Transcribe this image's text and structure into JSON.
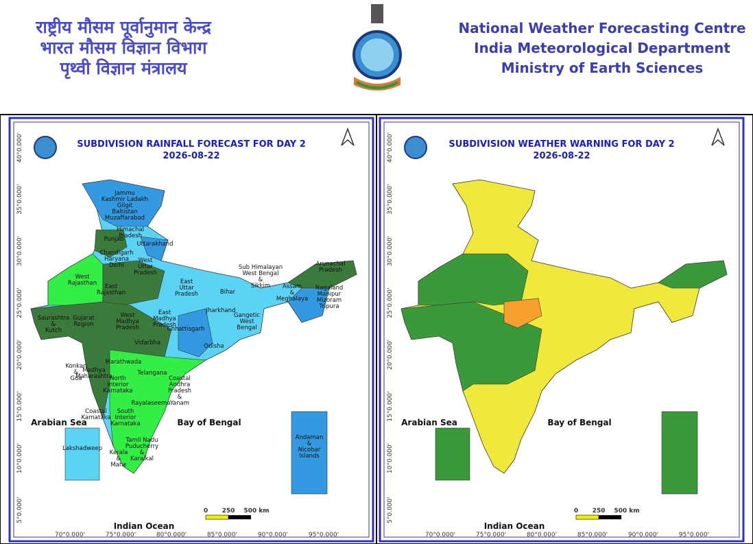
{
  "header": {
    "hindi": [
      "राष्ट्रीय मौसम पूर्वानुमान केन्द्र",
      "भारत मौसम विज्ञान विभाग",
      "पृथ्वी विज्ञान मंत्रालय"
    ],
    "english": [
      "National Weather Forecasting Centre",
      "India Meteorological Department",
      "Ministry of Earth Sciences"
    ]
  },
  "panels": [
    {
      "title": "SUBDIVISION RAINFALL FORECAST FOR DAY 2",
      "date": "2026-08-22",
      "latitude_labels": [
        "40°0.000'",
        "35°0.000'",
        "30°0.000'",
        "25°0.000'",
        "20°0.000'",
        "15°0.000'",
        "10°0.000'",
        "5°0.000'"
      ],
      "longitude_labels": [
        "70°0.000'",
        "75°0.000'",
        "80°0.000'",
        "85°0.000'",
        "90°0.000'",
        "95°0.000'"
      ],
      "seas": [
        "Arabian Sea",
        "Bay of Bengal",
        "Indian Ocean"
      ],
      "scale": [
        "0",
        "250",
        "500 km"
      ],
      "regions": [
        {
          "lines": [
            "Jammu",
            "Kashmir Ladakh",
            "Gilgit",
            "Baltistan",
            "Muzaffarabad"
          ]
        },
        {
          "lines": [
            "Himachal",
            "Pradesh"
          ]
        },
        {
          "lines": [
            "Punjab"
          ]
        },
        {
          "lines": [
            "Uttarakhand"
          ]
        },
        {
          "lines": [
            "Chandigarh",
            "Haryana",
            "Delhi"
          ]
        },
        {
          "lines": [
            "West",
            "Uttar",
            "Pradesh"
          ]
        },
        {
          "lines": [
            "West",
            "Rajasthan"
          ]
        },
        {
          "lines": [
            "East",
            "Rajasthan"
          ]
        },
        {
          "lines": [
            "East",
            "Uttar",
            "Pradesh"
          ]
        },
        {
          "lines": [
            "Bihar"
          ]
        },
        {
          "lines": [
            "Sub Himalayan",
            "West Bengal",
            "&",
            "Sikkim"
          ]
        },
        {
          "lines": [
            "Assam",
            "&",
            "Meghalaya"
          ]
        },
        {
          "lines": [
            "Nagaland",
            "Manipur",
            "Mizoram",
            "Tripura"
          ]
        },
        {
          "lines": [
            "Arunachal",
            "Pradesh"
          ]
        },
        {
          "lines": [
            "Saurashtra",
            "&",
            "Kutch"
          ]
        },
        {
          "lines": [
            "Gujarat",
            "Region"
          ]
        },
        {
          "lines": [
            "West",
            "Madhya",
            "Pradesh"
          ]
        },
        {
          "lines": [
            "East",
            "Madhya",
            "Pradesh"
          ]
        },
        {
          "lines": [
            "Jharkhand"
          ]
        },
        {
          "lines": [
            "Gangetic",
            "West",
            "Bengal"
          ]
        },
        {
          "lines": [
            "Chhattisgarh"
          ]
        },
        {
          "lines": [
            "Odisha"
          ]
        },
        {
          "lines": [
            "Vidarbha"
          ]
        },
        {
          "lines": [
            "Marathwada"
          ]
        },
        {
          "lines": [
            "Konkan",
            "&",
            "Goa"
          ]
        },
        {
          "lines": [
            "Madhya",
            "Maharashtra"
          ]
        },
        {
          "lines": [
            "Telangana"
          ]
        },
        {
          "lines": [
            "North",
            "Interior",
            "Karnataka"
          ]
        },
        {
          "lines": [
            "Coastal",
            "Andhra",
            "Pradesh",
            "&",
            "Yanam"
          ]
        },
        {
          "lines": [
            "Rayalaseema"
          ]
        },
        {
          "lines": [
            "Coastal",
            "Karnataka"
          ]
        },
        {
          "lines": [
            "South",
            "Interior",
            "Karnataka"
          ]
        },
        {
          "lines": [
            "Tamil Nadu",
            "Puducherry",
            "&",
            "Karaikal"
          ]
        },
        {
          "lines": [
            "Kerala",
            "&",
            "Mahe"
          ]
        },
        {
          "lines": [
            "Lakshadweep"
          ]
        },
        {
          "lines": [
            "Andaman",
            "&",
            "Nicobar",
            "Islands"
          ]
        }
      ]
    },
    {
      "title": "SUBDIVISION WEATHER WARNING FOR DAY 2",
      "date": "2026-08-22",
      "latitude_labels": [
        "40°0.000'",
        "35°0.000'",
        "30°0.000'",
        "25°0.000'",
        "20°0.000'",
        "15°0.000'",
        "10°0.000'",
        "5°0.000'"
      ],
      "longitude_labels": [
        "70°0.000'",
        "75°0.000'",
        "80°0.000'",
        "85°0.000'",
        "90°0.000'",
        "95°0.000'"
      ],
      "seas": [
        "Arabian Sea",
        "Bay of Bengal",
        "Indian Ocean"
      ],
      "scale": [
        "0",
        "250",
        "500 km"
      ]
    }
  ]
}
